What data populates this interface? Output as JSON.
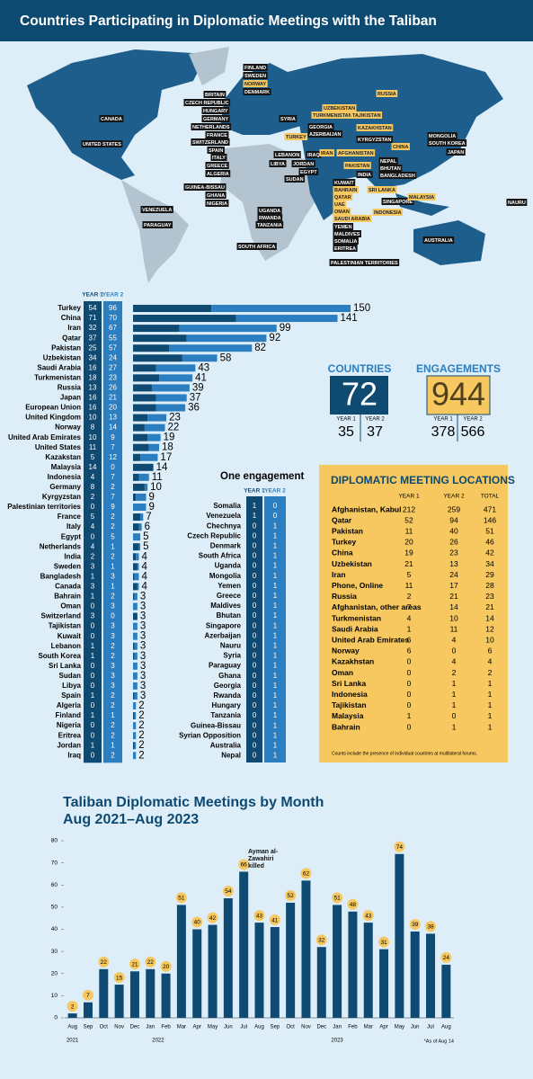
{
  "header": {
    "title": "Countries Participating in Diplomatic Meetings with the Taliban"
  },
  "map": {
    "labels": [
      "CANADA",
      "UNITED STATES",
      "VENEZUELA",
      "PARAGUAY",
      "FINLAND",
      "SWEDEN",
      "DENMARK",
      "BRITAIN",
      "CZECH REPUBLIC",
      "HUNGARY",
      "GERMANY",
      "NETHERLANDS",
      "FRANCE",
      "SWITZERLAND",
      "SPAIN",
      "ITALY",
      "GREECE",
      "ALGERIA",
      "GUINEA-BISSAU",
      "GHANA",
      "NIGERIA",
      "UGANDA",
      "RWANDA",
      "TANZANIA",
      "SOUTH AFRICA",
      "SYRIA",
      "GEORGIA",
      "AZERBAIJAN",
      "LEBANON",
      "IRAQ",
      "JORDAN",
      "LIBYA",
      "EGYPT",
      "SUDAN",
      "KYRGYZSTAN",
      "INDIA",
      "NEPAL",
      "BHUTAN",
      "BANGLADESH",
      "MONGOLIA",
      "SOUTH KOREA",
      "JAPAN",
      "KUWAIT",
      "YEMEN",
      "MALDIVES",
      "SOMALIA",
      "ERITREA",
      "SINGAPORE",
      "NAURU",
      "AUSTRALIA",
      "PALESTINIAN TERRITORIES"
    ],
    "location_labels": [
      "NORWAY",
      "RUSSIA",
      "UZBEKISTAN",
      "TURKMENISTAN",
      "TAJIKISTAN",
      "KAZAKHSTAN",
      "TURKEY",
      "IRAN",
      "AFGHANISTAN",
      "PAKISTAN",
      "CHINA",
      "BAHRAIN",
      "QATAR",
      "UAE",
      "OMAN",
      "SAUDI ARABIA",
      "SRI LANKA",
      "MALAYSIA",
      "INDONESIA"
    ]
  },
  "chart_data": [
    {
      "type": "bar",
      "orientation": "horizontal",
      "categories": [
        "Turkey",
        "China",
        "Iran",
        "Qatar",
        "Pakistan",
        "Uzbekistan",
        "Saudi Arabia",
        "Turkmenistan",
        "Russia",
        "Japan",
        "European Union",
        "United Kingdom",
        "Norway",
        "United Arab Emirates",
        "United States",
        "Kazakstan",
        "Malaysia",
        "Indonesia",
        "Germany",
        "Kyrgyzstan",
        "Palestinian territories",
        "France",
        "Italy",
        "Egypt",
        "Netherlands",
        "India",
        "Sweden",
        "Bangladesh",
        "Canada",
        "Bahrain",
        "Oman",
        "Switzerland",
        "Tajikistan",
        "Kuwait",
        "Lebanon",
        "South Korea",
        "Sri Lanka",
        "Sudan",
        "Libya",
        "Spain",
        "Algeria",
        "Finland",
        "Nigeria",
        "Eritrea",
        "Jordan",
        "Iraq"
      ],
      "series": [
        {
          "name": "YEAR 1",
          "color": "#0f4a73",
          "values": [
            54,
            71,
            32,
            37,
            25,
            34,
            16,
            18,
            13,
            16,
            16,
            10,
            8,
            10,
            11,
            5,
            14,
            4,
            8,
            2,
            0,
            5,
            4,
            0,
            4,
            2,
            3,
            1,
            3,
            1,
            0,
            3,
            0,
            0,
            1,
            1,
            0,
            0,
            0,
            1,
            0,
            1,
            0,
            0,
            1,
            0
          ]
        },
        {
          "name": "YEAR 2",
          "color": "#2b7fc1",
          "values": [
            96,
            70,
            67,
            55,
            57,
            24,
            27,
            23,
            26,
            21,
            20,
            13,
            14,
            9,
            7,
            12,
            0,
            7,
            2,
            7,
            9,
            2,
            2,
            5,
            1,
            2,
            1,
            3,
            1,
            2,
            3,
            0,
            3,
            3,
            2,
            2,
            3,
            3,
            3,
            2,
            2,
            1,
            2,
            2,
            1,
            2
          ]
        }
      ],
      "totals": [
        150,
        141,
        99,
        92,
        82,
        58,
        43,
        41,
        39,
        37,
        36,
        23,
        22,
        19,
        18,
        17,
        14,
        11,
        10,
        9,
        9,
        7,
        6,
        5,
        5,
        4,
        4,
        4,
        4,
        3,
        3,
        3,
        3,
        3,
        3,
        3,
        3,
        3,
        3,
        3,
        2,
        2,
        2,
        2,
        2,
        2
      ]
    },
    {
      "type": "bar",
      "orientation": "vertical",
      "title": "Taliban Diplomatic Meetings by Month",
      "subtitle": "Aug 2021–Aug 2023",
      "categories": [
        "Aug",
        "Sep",
        "Oct",
        "Nov",
        "Dec",
        "Jan",
        "Feb",
        "Mar",
        "Apr",
        "May",
        "Jun",
        "Jul",
        "Aug",
        "Sep",
        "Oct",
        "Nov",
        "Dec",
        "Jan",
        "Feb",
        "Mar",
        "Apr",
        "May",
        "Jun",
        "Jul",
        "Aug"
      ],
      "year_labels": [
        "2021",
        "2022",
        "2023"
      ],
      "values": [
        2,
        7,
        22,
        15,
        21,
        22,
        20,
        51,
        40,
        42,
        54,
        66,
        43,
        41,
        52,
        62,
        32,
        51,
        48,
        43,
        31,
        74,
        39,
        38,
        24
      ],
      "color": "#0f4a73",
      "label_color": "#f6c85f",
      "ylim": [
        0,
        80
      ],
      "yticks": [
        0,
        10,
        20,
        30,
        40,
        50,
        60,
        70,
        80
      ],
      "grid": false,
      "annotation": "Ayman al-Zawahiri killed",
      "note": "*As of Aug 14"
    }
  ],
  "one_engagement": {
    "title": "One engagement",
    "columns": [
      "YEAR 1",
      "YEAR 2"
    ],
    "rows": [
      [
        "Somalia",
        1,
        0
      ],
      [
        "Venezuela",
        1,
        0
      ],
      [
        "Chechnya",
        0,
        1
      ],
      [
        "Czech Republic",
        0,
        1
      ],
      [
        "Denmark",
        0,
        1
      ],
      [
        "South Africa",
        0,
        1
      ],
      [
        "Uganda",
        0,
        1
      ],
      [
        "Mongolia",
        0,
        1
      ],
      [
        "Yemen",
        0,
        1
      ],
      [
        "Greece",
        0,
        1
      ],
      [
        "Maldives",
        0,
        1
      ],
      [
        "Bhutan",
        0,
        1
      ],
      [
        "Singapore",
        0,
        1
      ],
      [
        "Azerbaijan",
        0,
        1
      ],
      [
        "Nauru",
        0,
        1
      ],
      [
        "Syria",
        0,
        1
      ],
      [
        "Paraguay",
        0,
        1
      ],
      [
        "Ghana",
        0,
        1
      ],
      [
        "Georgia",
        0,
        1
      ],
      [
        "Rwanda",
        0,
        1
      ],
      [
        "Hungary",
        0,
        1
      ],
      [
        "Tanzania",
        0,
        1
      ],
      [
        "Guinea-Bissau",
        0,
        1
      ],
      [
        "Syrian Opposition",
        0,
        1
      ],
      [
        "Australia",
        0,
        1
      ],
      [
        "Nepal",
        0,
        1
      ]
    ]
  },
  "summary": {
    "countries": {
      "label": "COUNTRIES",
      "value": 72,
      "year_labels": [
        "YEAR 1",
        "YEAR 2"
      ],
      "years": [
        35,
        37
      ]
    },
    "engagements": {
      "label": "ENGAGEMENTS",
      "value": 944,
      "year_labels": [
        "YEAR 1",
        "YEAR 2"
      ],
      "years": [
        378,
        566
      ]
    }
  },
  "locations": {
    "title": "DIPLOMATIC MEETING LOCATIONS",
    "columns": [
      "YEAR 1",
      "YEAR 2",
      "TOTAL"
    ],
    "rows": [
      [
        "Afghanistan, Kabul",
        212,
        259,
        471
      ],
      [
        "Qatar",
        52,
        94,
        146
      ],
      [
        "Pakistan",
        11,
        40,
        51
      ],
      [
        "Turkey",
        20,
        26,
        46
      ],
      [
        "China",
        19,
        23,
        42
      ],
      [
        "Uzbekistan",
        21,
        13,
        34
      ],
      [
        "Iran",
        5,
        24,
        29
      ],
      [
        "Phone, Online",
        11,
        17,
        28
      ],
      [
        "Russia",
        2,
        21,
        23
      ],
      [
        "Afghanistan, other areas",
        7,
        14,
        21
      ],
      [
        "Turkmenistan",
        4,
        10,
        14
      ],
      [
        "Saudi Arabia",
        1,
        11,
        12
      ],
      [
        "United Arab Emirates",
        6,
        4,
        10
      ],
      [
        "Norway",
        6,
        0,
        6
      ],
      [
        "Kazakhstan",
        0,
        4,
        4
      ],
      [
        "Oman",
        0,
        2,
        2
      ],
      [
        "Sri Lanka",
        0,
        1,
        1
      ],
      [
        "Indonesia",
        0,
        1,
        1
      ],
      [
        "Tajikistan",
        0,
        1,
        1
      ],
      [
        "Malaysia",
        1,
        0,
        1
      ],
      [
        "Bahrain",
        0,
        1,
        1
      ]
    ],
    "note": "Counts include the presence of individual countries at multilateral forums."
  }
}
